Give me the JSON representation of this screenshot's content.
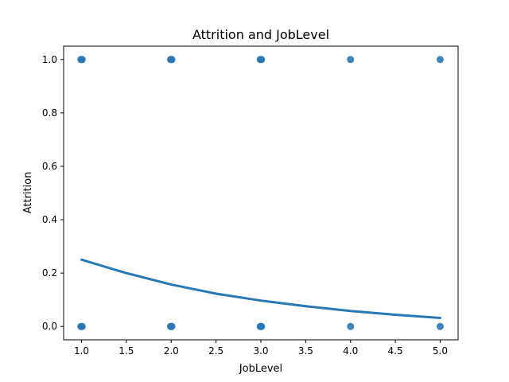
{
  "chart_data": {
    "type": "scatter",
    "title": "Attrition and JobLevel",
    "xlabel": "JobLevel",
    "ylabel": "Attrition",
    "xlim": [
      0.8,
      5.2
    ],
    "ylim": [
      -0.05,
      1.05
    ],
    "xticks": [
      1.0,
      1.5,
      2.0,
      2.5,
      3.0,
      3.5,
      4.0,
      4.5,
      5.0
    ],
    "xtick_labels": [
      "1.0",
      "1.5",
      "2.0",
      "2.5",
      "3.0",
      "3.5",
      "4.0",
      "4.5",
      "5.0"
    ],
    "yticks": [
      0.0,
      0.2,
      0.4,
      0.6,
      0.8,
      1.0
    ],
    "ytick_labels": [
      "0.0",
      "0.2",
      "0.4",
      "0.6",
      "0.8",
      "1.0"
    ],
    "grid": false,
    "color": "#2878b5",
    "points": [
      {
        "x": 1,
        "y": 1
      },
      {
        "x": 2,
        "y": 1
      },
      {
        "x": 3,
        "y": 1
      },
      {
        "x": 4,
        "y": 1
      },
      {
        "x": 5,
        "y": 1
      },
      {
        "x": 1,
        "y": 0
      },
      {
        "x": 2,
        "y": 0
      },
      {
        "x": 3,
        "y": 0
      },
      {
        "x": 4,
        "y": 0
      },
      {
        "x": 5,
        "y": 0
      }
    ],
    "fit_curve": {
      "type": "logistic",
      "x": [
        1.0,
        1.5,
        2.0,
        2.5,
        3.0,
        3.5,
        4.0,
        4.5,
        5.0
      ],
      "y": [
        0.25,
        0.2,
        0.157,
        0.123,
        0.097,
        0.076,
        0.058,
        0.044,
        0.032
      ]
    }
  }
}
